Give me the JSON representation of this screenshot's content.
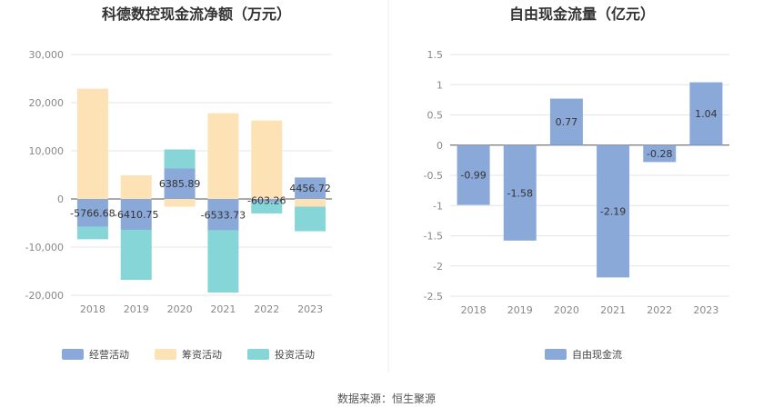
{
  "source_note": "数据来源：恒生聚源",
  "chart_data": [
    {
      "type": "bar",
      "stacked": true,
      "title": "科德数控现金流净额（万元）",
      "categories": [
        "2018",
        "2019",
        "2020",
        "2021",
        "2022",
        "2023"
      ],
      "ylim": [
        -20000,
        30000
      ],
      "yticks": [
        "30,000",
        "20,000",
        "10,000",
        "0",
        "-10,000",
        "-20,000"
      ],
      "ytick_values": [
        30000,
        20000,
        10000,
        0,
        -10000,
        -20000
      ],
      "grid": true,
      "legend_position": "bottom",
      "series": [
        {
          "name": "经营活动",
          "color": "#8aa9d8",
          "values": [
            -5766.68,
            -6410.75,
            6385.89,
            -6533.73,
            -603.26,
            4456.72
          ]
        },
        {
          "name": "筹资活动",
          "color": "#fde2b5",
          "values": [
            22900,
            4900,
            -1600,
            17800,
            16300,
            -1600
          ]
        },
        {
          "name": "投资活动",
          "color": "#86d6d8",
          "values": [
            -2600,
            -10400,
            3900,
            -12900,
            -2400,
            -5100
          ]
        }
      ],
      "data_labels": [
        "-5766.68",
        "-6410.75",
        "6385.89",
        "-6533.73",
        "-603.26",
        "4456.72"
      ]
    },
    {
      "type": "bar",
      "title": "自由现金流量（亿元）",
      "categories": [
        "2018",
        "2019",
        "2020",
        "2021",
        "2022",
        "2023"
      ],
      "ylim": [
        -2.5,
        1.5
      ],
      "yticks": [
        "1.5",
        "1",
        "0.5",
        "0",
        "-0.5",
        "-1",
        "-1.5",
        "-2",
        "-2.5"
      ],
      "ytick_values": [
        1.5,
        1,
        0.5,
        0,
        -0.5,
        -1,
        -1.5,
        -2,
        -2.5
      ],
      "grid": true,
      "legend_position": "bottom",
      "series": [
        {
          "name": "自由现金流",
          "color": "#8aa9d8",
          "values": [
            -0.99,
            -1.58,
            0.77,
            -2.19,
            -0.28,
            1.04
          ]
        }
      ],
      "data_labels": [
        "-0.99",
        "-1.58",
        "0.77",
        "-2.19",
        "-0.28",
        "1.04"
      ]
    }
  ]
}
